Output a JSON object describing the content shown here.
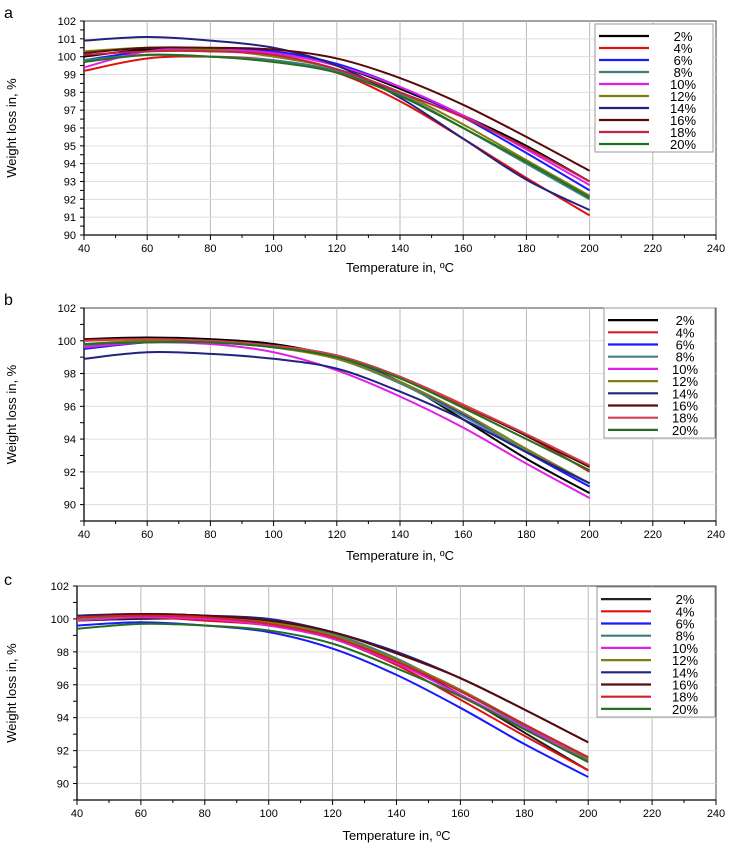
{
  "chart_data": [
    {
      "type": "line",
      "panel_label": "a",
      "xlabel": "Temperature in, ºC",
      "ylabel": "Weight loss in, %",
      "xlim": [
        40,
        240
      ],
      "ylim": [
        90,
        102
      ],
      "xticks": [
        40,
        60,
        80,
        100,
        120,
        140,
        160,
        180,
        200,
        220,
        240
      ],
      "yticks": [
        90,
        91,
        92,
        93,
        94,
        95,
        96,
        97,
        98,
        99,
        100,
        101,
        102
      ],
      "grid": true,
      "legend_position": "top-right",
      "x": [
        40,
        60,
        80,
        100,
        120,
        140,
        160,
        180,
        200
      ],
      "series": [
        {
          "name": "2%",
          "color": "#000000",
          "values": [
            100.0,
            100.4,
            100.3,
            100.2,
            99.5,
            98.2,
            96.7,
            95.0,
            93.0
          ]
        },
        {
          "name": "4%",
          "color": "#e01010",
          "values": [
            99.2,
            99.9,
            100.0,
            99.8,
            99.1,
            97.5,
            95.4,
            93.2,
            91.1
          ]
        },
        {
          "name": "6%",
          "color": "#1a1aff",
          "values": [
            99.8,
            100.3,
            100.4,
            100.3,
            99.6,
            98.3,
            96.6,
            94.6,
            92.5
          ]
        },
        {
          "name": "8%",
          "color": "#3d7d7d",
          "values": [
            99.8,
            100.1,
            100.0,
            99.8,
            99.2,
            97.9,
            96.0,
            94.0,
            92.0
          ]
        },
        {
          "name": "10%",
          "color": "#e020e8",
          "values": [
            99.4,
            100.3,
            100.4,
            100.2,
            99.5,
            98.3,
            96.7,
            94.8,
            92.8
          ]
        },
        {
          "name": "12%",
          "color": "#7f7f10",
          "values": [
            100.3,
            100.5,
            100.4,
            100.0,
            99.3,
            98.0,
            96.2,
            94.2,
            92.2
          ]
        },
        {
          "name": "14%",
          "color": "#22227f",
          "values": [
            100.9,
            101.1,
            100.9,
            100.5,
            99.5,
            97.7,
            95.4,
            93.1,
            91.4
          ]
        },
        {
          "name": "16%",
          "color": "#5a0a0a",
          "values": [
            100.2,
            100.5,
            100.5,
            100.4,
            99.9,
            98.8,
            97.3,
            95.5,
            93.6
          ]
        },
        {
          "name": "18%",
          "color": "#c82040",
          "values": [
            100.1,
            100.3,
            100.3,
            100.1,
            99.3,
            98.0,
            96.6,
            94.9,
            93.0
          ]
        },
        {
          "name": "20%",
          "color": "#257020",
          "values": [
            99.7,
            100.1,
            100.0,
            99.7,
            99.1,
            97.8,
            96.0,
            94.1,
            92.1
          ]
        }
      ]
    },
    {
      "type": "line",
      "panel_label": "b",
      "xlabel": "Temperature in, ºC",
      "ylabel": "Weight loss in, %",
      "xlim": [
        40,
        240
      ],
      "ylim": [
        89,
        102
      ],
      "xticks": [
        40,
        60,
        80,
        100,
        120,
        140,
        160,
        180,
        200,
        220,
        240
      ],
      "yticks": [
        90,
        92,
        94,
        96,
        98,
        100,
        102
      ],
      "grid": true,
      "legend_position": "top-right",
      "x": [
        40,
        60,
        80,
        100,
        120,
        140,
        160,
        180,
        200
      ],
      "series": [
        {
          "name": "2%",
          "color": "#000000",
          "values": [
            100.1,
            100.2,
            100.1,
            99.8,
            99.0,
            97.5,
            95.2,
            92.8,
            90.7
          ]
        },
        {
          "name": "4%",
          "color": "#d82020",
          "values": [
            100.0,
            100.1,
            100.0,
            99.7,
            99.1,
            97.8,
            96.0,
            94.2,
            92.0
          ]
        },
        {
          "name": "6%",
          "color": "#1a1aff",
          "values": [
            99.5,
            99.9,
            99.9,
            99.7,
            99.0,
            97.5,
            95.5,
            93.2,
            91.1
          ]
        },
        {
          "name": "8%",
          "color": "#4a8080",
          "values": [
            99.7,
            100.0,
            99.9,
            99.6,
            98.9,
            97.4,
            95.4,
            93.3,
            91.3
          ]
        },
        {
          "name": "10%",
          "color": "#e020e8",
          "values": [
            99.6,
            99.9,
            99.8,
            99.3,
            98.2,
            96.6,
            94.7,
            92.5,
            90.4
          ]
        },
        {
          "name": "12%",
          "color": "#7f7f10",
          "values": [
            99.8,
            100.0,
            99.9,
            99.6,
            98.9,
            97.5,
            95.6,
            93.4,
            91.3
          ]
        },
        {
          "name": "14%",
          "color": "#22227f",
          "values": [
            98.9,
            99.3,
            99.2,
            98.9,
            98.3,
            96.9,
            95.2,
            93.2,
            91.3
          ]
        },
        {
          "name": "16%",
          "color": "#5a0a0a",
          "values": [
            100.1,
            100.1,
            100.0,
            99.7,
            99.1,
            97.8,
            96.1,
            94.2,
            92.3
          ]
        },
        {
          "name": "18%",
          "color": "#d04050",
          "values": [
            100.0,
            100.1,
            100.0,
            99.7,
            99.1,
            97.8,
            96.1,
            94.3,
            92.4
          ]
        },
        {
          "name": "20%",
          "color": "#257020",
          "values": [
            99.8,
            99.9,
            99.9,
            99.6,
            99.0,
            97.7,
            95.9,
            94.0,
            92.1
          ]
        }
      ]
    },
    {
      "type": "line",
      "panel_label": "c",
      "xlabel": "Temperature in, ºC",
      "ylabel": "Weight loss in, %",
      "xlim": [
        40,
        240
      ],
      "ylim": [
        89,
        102
      ],
      "xticks": [
        40,
        60,
        80,
        100,
        120,
        140,
        160,
        180,
        200,
        220,
        240
      ],
      "yticks": [
        90,
        92,
        94,
        96,
        98,
        100,
        102
      ],
      "grid": true,
      "legend_position": "top-right",
      "x": [
        40,
        60,
        80,
        100,
        120,
        140,
        160,
        180,
        200
      ],
      "series": [
        {
          "name": "2%",
          "color": "#202020",
          "values": [
            99.9,
            100.0,
            100.0,
            99.7,
            98.9,
            97.4,
            95.4,
            93.1,
            90.8
          ]
        },
        {
          "name": "4%",
          "color": "#e01010",
          "values": [
            100.0,
            100.1,
            99.9,
            99.6,
            98.8,
            97.2,
            95.1,
            92.9,
            90.8
          ]
        },
        {
          "name": "6%",
          "color": "#1a1aff",
          "values": [
            99.6,
            99.8,
            99.6,
            99.2,
            98.2,
            96.6,
            94.6,
            92.4,
            90.4
          ]
        },
        {
          "name": "8%",
          "color": "#3d7d7d",
          "values": [
            100.2,
            100.3,
            100.2,
            99.9,
            99.1,
            97.6,
            95.6,
            93.5,
            91.4
          ]
        },
        {
          "name": "10%",
          "color": "#e020e8",
          "values": [
            99.9,
            100.1,
            100.0,
            99.6,
            98.8,
            97.3,
            95.4,
            93.4,
            91.5
          ]
        },
        {
          "name": "12%",
          "color": "#7f7f10",
          "values": [
            100.0,
            100.2,
            100.1,
            99.8,
            99.0,
            97.5,
            95.7,
            93.6,
            91.5
          ]
        },
        {
          "name": "14%",
          "color": "#22227f",
          "values": [
            100.2,
            100.3,
            100.2,
            100.0,
            99.2,
            98.0,
            96.4,
            94.5,
            92.5
          ]
        },
        {
          "name": "16%",
          "color": "#5a0a0a",
          "values": [
            100.1,
            100.3,
            100.2,
            99.9,
            99.2,
            97.9,
            96.4,
            94.5,
            92.5
          ]
        },
        {
          "name": "18%",
          "color": "#d02030",
          "values": [
            100.1,
            100.2,
            100.1,
            99.7,
            98.9,
            97.4,
            95.6,
            93.6,
            91.6
          ]
        },
        {
          "name": "20%",
          "color": "#257020",
          "values": [
            99.4,
            99.7,
            99.6,
            99.3,
            98.5,
            97.0,
            95.3,
            93.3,
            91.3
          ]
        }
      ]
    }
  ]
}
